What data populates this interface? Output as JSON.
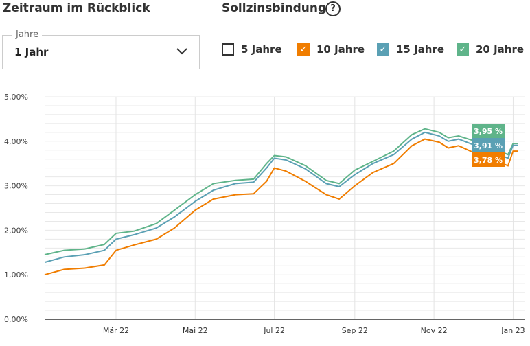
{
  "header": {
    "period_title": "Zeitraum im Rückblick",
    "binding_title": "Sollzinsbindung",
    "help_icon": "question-circle-icon"
  },
  "period_select": {
    "label": "Jahre",
    "value": "1 Jahr"
  },
  "checkboxes": [
    {
      "label": "5 Jahre",
      "checked": false,
      "color": "#333333"
    },
    {
      "label": "10 Jahre",
      "checked": true,
      "color": "#f07d00"
    },
    {
      "label": "15 Jahre",
      "checked": true,
      "color": "#5aa0b4"
    },
    {
      "label": "20 Jahre",
      "checked": true,
      "color": "#5fb48a"
    }
  ],
  "chart_data": {
    "type": "line",
    "ylim": [
      0,
      5
    ],
    "yticks": [
      "0,00%",
      "1,00%",
      "2,00%",
      "3,00%",
      "4,00%",
      "5,00%"
    ],
    "xticks": [
      {
        "date": "2022-03-01",
        "label": "Mär 22"
      },
      {
        "date": "2022-05-01",
        "label": "Mai 22"
      },
      {
        "date": "2022-07-01",
        "label": "Jul 22"
      },
      {
        "date": "2022-09-01",
        "label": "Sep 22"
      },
      {
        "date": "2022-11-01",
        "label": "Nov 22"
      },
      {
        "date": "2023-01-01",
        "label": "Jan 23"
      }
    ],
    "xlim": [
      "2022-01-05",
      "2023-01-05"
    ],
    "grid": true,
    "x": [
      "2022-01-05",
      "2022-01-20",
      "2022-02-05",
      "2022-02-20",
      "2022-03-01",
      "2022-03-15",
      "2022-04-01",
      "2022-04-15",
      "2022-05-01",
      "2022-05-15",
      "2022-06-01",
      "2022-06-15",
      "2022-06-25",
      "2022-07-01",
      "2022-07-10",
      "2022-07-25",
      "2022-08-10",
      "2022-08-20",
      "2022-09-01",
      "2022-09-15",
      "2022-10-01",
      "2022-10-15",
      "2022-10-25",
      "2022-11-05",
      "2022-11-12",
      "2022-11-20",
      "2022-12-05",
      "2022-12-20",
      "2022-12-28",
      "2023-01-01",
      "2023-01-05"
    ],
    "series": [
      {
        "name": "20 Jahre",
        "color": "#5fb48a",
        "end_label": "3,95 %",
        "values": [
          1.45,
          1.55,
          1.58,
          1.68,
          1.93,
          1.98,
          2.15,
          2.45,
          2.8,
          3.05,
          3.12,
          3.15,
          3.5,
          3.68,
          3.65,
          3.45,
          3.12,
          3.05,
          3.35,
          3.55,
          3.78,
          4.15,
          4.28,
          4.2,
          4.08,
          4.12,
          3.98,
          3.8,
          3.7,
          3.95,
          3.95
        ]
      },
      {
        "name": "15 Jahre",
        "color": "#5aa0b4",
        "end_label": "3,91 %",
        "values": [
          1.28,
          1.4,
          1.45,
          1.55,
          1.8,
          1.9,
          2.05,
          2.3,
          2.65,
          2.9,
          3.05,
          3.08,
          3.4,
          3.62,
          3.58,
          3.38,
          3.05,
          2.98,
          3.25,
          3.5,
          3.7,
          4.05,
          4.2,
          4.12,
          4.0,
          4.05,
          3.88,
          3.72,
          3.62,
          3.91,
          3.91
        ]
      },
      {
        "name": "10 Jahre",
        "color": "#f07d00",
        "end_label": "3,78 %",
        "values": [
          1.0,
          1.12,
          1.15,
          1.22,
          1.55,
          1.67,
          1.8,
          2.05,
          2.45,
          2.7,
          2.8,
          2.82,
          3.1,
          3.4,
          3.33,
          3.1,
          2.8,
          2.7,
          3.0,
          3.3,
          3.5,
          3.9,
          4.05,
          3.98,
          3.85,
          3.9,
          3.7,
          3.55,
          3.45,
          3.78,
          3.78
        ]
      }
    ]
  }
}
